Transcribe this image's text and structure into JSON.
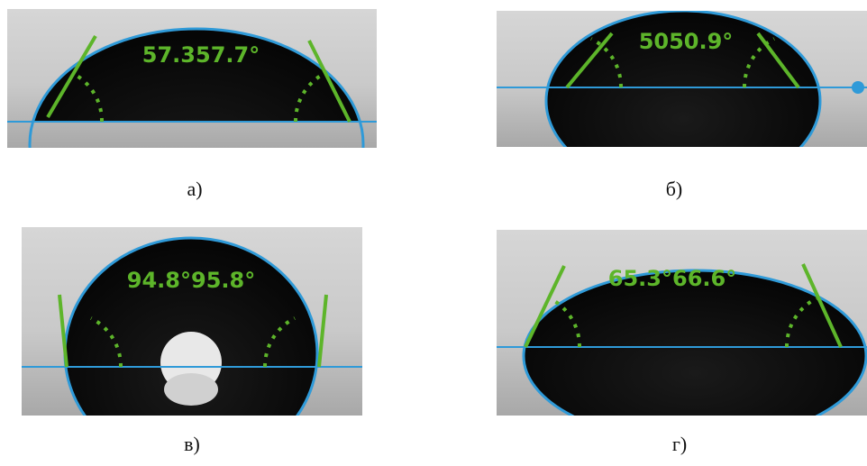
{
  "panels": [
    {
      "angle_text": "57.357.7°",
      "caption": "а)"
    },
    {
      "angle_text": "5050.9°",
      "caption": "б)"
    },
    {
      "angle_text": "94.8°95.8°",
      "caption": "в)"
    },
    {
      "angle_text": "65.3°66.6°",
      "caption": "г)"
    }
  ]
}
